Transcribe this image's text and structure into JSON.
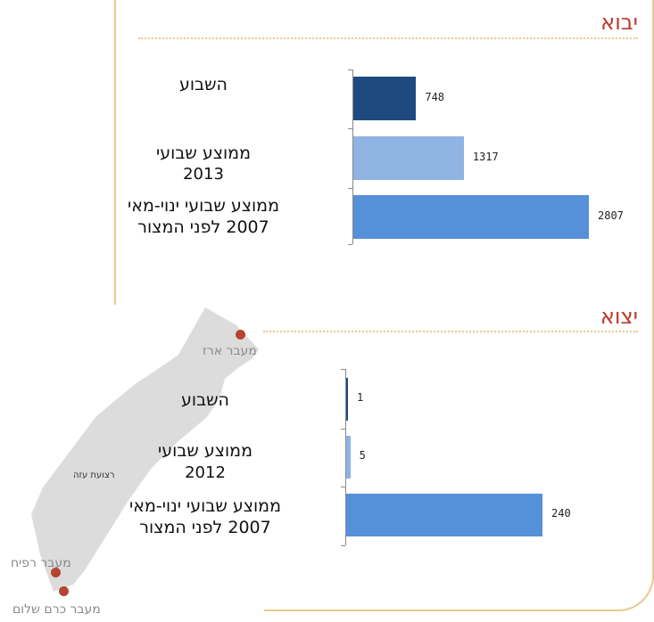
{
  "chart_data": [
    {
      "type": "bar",
      "orientation": "horizontal",
      "title": "יבוא",
      "categories": [
        "השבוע",
        "ממוצע שבועי 2013",
        "ממוצע שבועי ינוי-מאי 2007 לפני המצור"
      ],
      "category_lines": [
        [
          "השבוע"
        ],
        [
          "ממוצע שבועי",
          "2013"
        ],
        [
          "ממוצע שבועי ינוי-מאי",
          "2007 לפני המצור"
        ]
      ],
      "values": [
        748,
        1317,
        2807
      ],
      "value_labels": [
        "748",
        "1317",
        "2807"
      ],
      "colors": [
        "#1f4a7f",
        "#8fb3e3",
        "#5590d9"
      ],
      "xlim": [
        0,
        2807
      ],
      "grid": false
    },
    {
      "type": "bar",
      "orientation": "horizontal",
      "title": "יצוא",
      "categories": [
        "השבוע",
        "ממוצע שבועי 2012",
        "ממוצע שבועי ינוי-מאי 2007 לפני המצור"
      ],
      "category_lines": [
        [
          "השבוע"
        ],
        [
          "ממוצע שבועי",
          "2012"
        ],
        [
          "ממוצע שבועי ינוי-מאי",
          "2007 לפני המצור"
        ]
      ],
      "values": [
        1,
        5,
        240
      ],
      "value_labels": [
        "1",
        "5",
        "240"
      ],
      "colors": [
        "#1f4a7f",
        "#8fb3e3",
        "#5590d9"
      ],
      "xlim": [
        0,
        240
      ],
      "grid": false
    }
  ],
  "map": {
    "region_label": "רצועת עזה",
    "crossings": [
      "מעבר ארז",
      "מעבר רפיח",
      "מעבר כרם שלום"
    ],
    "land_color": "#dcdcdd",
    "marker_color": "#b5452e"
  },
  "accent_color": "#e9c98f",
  "title_color": "#c0392b"
}
